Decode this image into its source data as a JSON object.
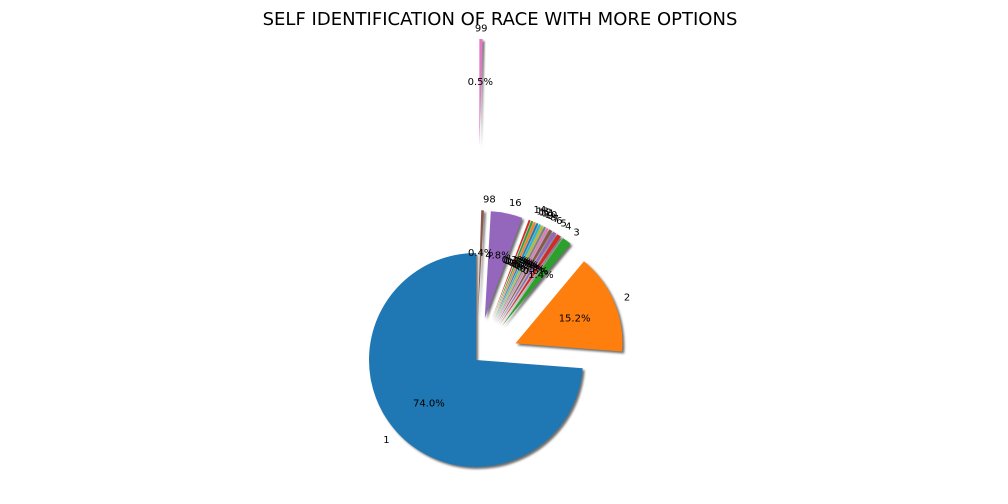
{
  "chart_data": {
    "type": "pie",
    "title": "SELF IDENTIFICATION OF RACE WITH MORE OPTIONS",
    "start_angle_deg": 90,
    "counterclock": true,
    "shadow": true,
    "legend": "none",
    "slices": [
      {
        "label": "1",
        "value": 74.0,
        "pct": "74.0%",
        "color": "#1f77b4",
        "explode": 0.0
      },
      {
        "label": "2",
        "value": 15.2,
        "pct": "15.2%",
        "color": "#ff7f0e",
        "explode": 0.4
      },
      {
        "label": "3",
        "value": 1.4,
        "pct": "1.4%",
        "color": "#2ca02c",
        "explode": 0.4
      },
      {
        "label": "4",
        "value": 0.6,
        "pct": "0.6%",
        "color": "#d62728",
        "explode": 0.4
      },
      {
        "label": "5",
        "value": 0.5,
        "pct": "0.5%",
        "color": "#9467bd",
        "explode": 0.4
      },
      {
        "label": "6",
        "value": 0.5,
        "pct": "0.5%",
        "color": "#8c564b",
        "explode": 0.4
      },
      {
        "label": "7",
        "value": 0.3,
        "pct": "0.3%",
        "color": "#e377c2",
        "explode": 0.4
      },
      {
        "label": "8",
        "value": 0.3,
        "pct": "0.3%",
        "color": "#7f7f7f",
        "explode": 0.4
      },
      {
        "label": "9",
        "value": 0.3,
        "pct": "0.3%",
        "color": "#bcbd22",
        "explode": 0.4
      },
      {
        "label": "10",
        "value": 0.3,
        "pct": "0.3%",
        "color": "#17becf",
        "explode": 0.4
      },
      {
        "label": "11",
        "value": 0.3,
        "pct": "0.3%",
        "color": "#1f77b4",
        "explode": 0.4
      },
      {
        "label": "12",
        "value": 0.3,
        "pct": "0.3%",
        "color": "#ff7f0e",
        "explode": 0.4
      },
      {
        "label": "13",
        "value": 0.3,
        "pct": "0.3%",
        "color": "#2ca02c",
        "explode": 0.4
      },
      {
        "label": "14",
        "value": 0.3,
        "pct": "0.3%",
        "color": "#d62728",
        "explode": 0.4
      },
      {
        "label": "16",
        "value": 4.8,
        "pct": "4.8%",
        "color": "#9467bd",
        "explode": 0.4
      },
      {
        "label": "98",
        "value": 0.4,
        "pct": "0.4%",
        "color": "#8c564b",
        "explode": 0.4
      },
      {
        "label": "99",
        "value": 0.5,
        "pct": "0.5%",
        "color": "#e377c2",
        "explode": 2.0
      }
    ]
  }
}
